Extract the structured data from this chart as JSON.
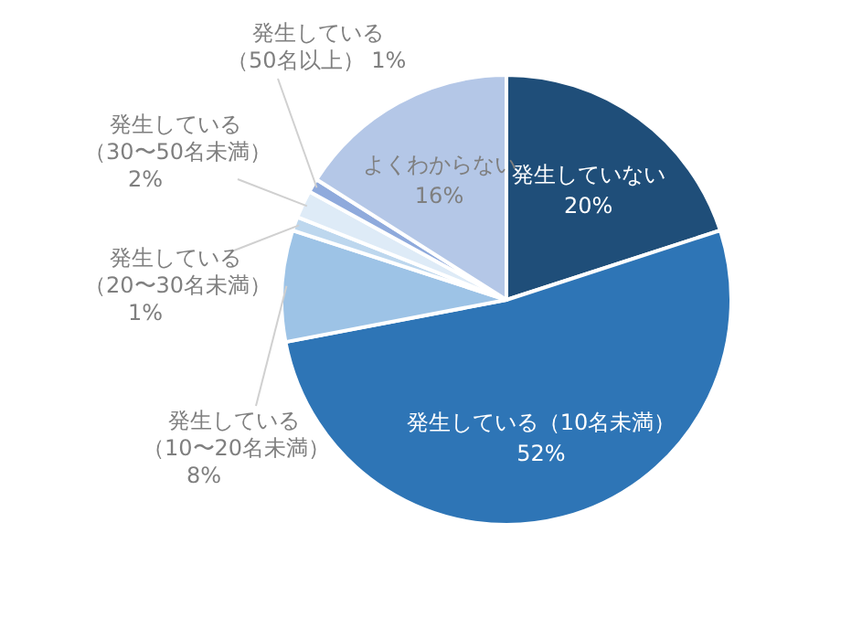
{
  "chart_data": {
    "type": "pie",
    "categories": [
      "発生していない",
      "発生している（10名未満）",
      "発生している（10〜20名未満）",
      "発生している（20〜30名未満）",
      "発生している（30〜50名未満）",
      "発生している（50名以上）",
      "よくわからない"
    ],
    "values": [
      20,
      52,
      8,
      1,
      2,
      1,
      16
    ],
    "colors": [
      "#1f4e79",
      "#2e75b6",
      "#9dc3e6",
      "#bdd7ee",
      "#deebf7",
      "#8faadc",
      "#b4c7e7"
    ],
    "value_labels": [
      "20%",
      "52%",
      "8%",
      "1%",
      "2%",
      "1%",
      "16%"
    ]
  }
}
